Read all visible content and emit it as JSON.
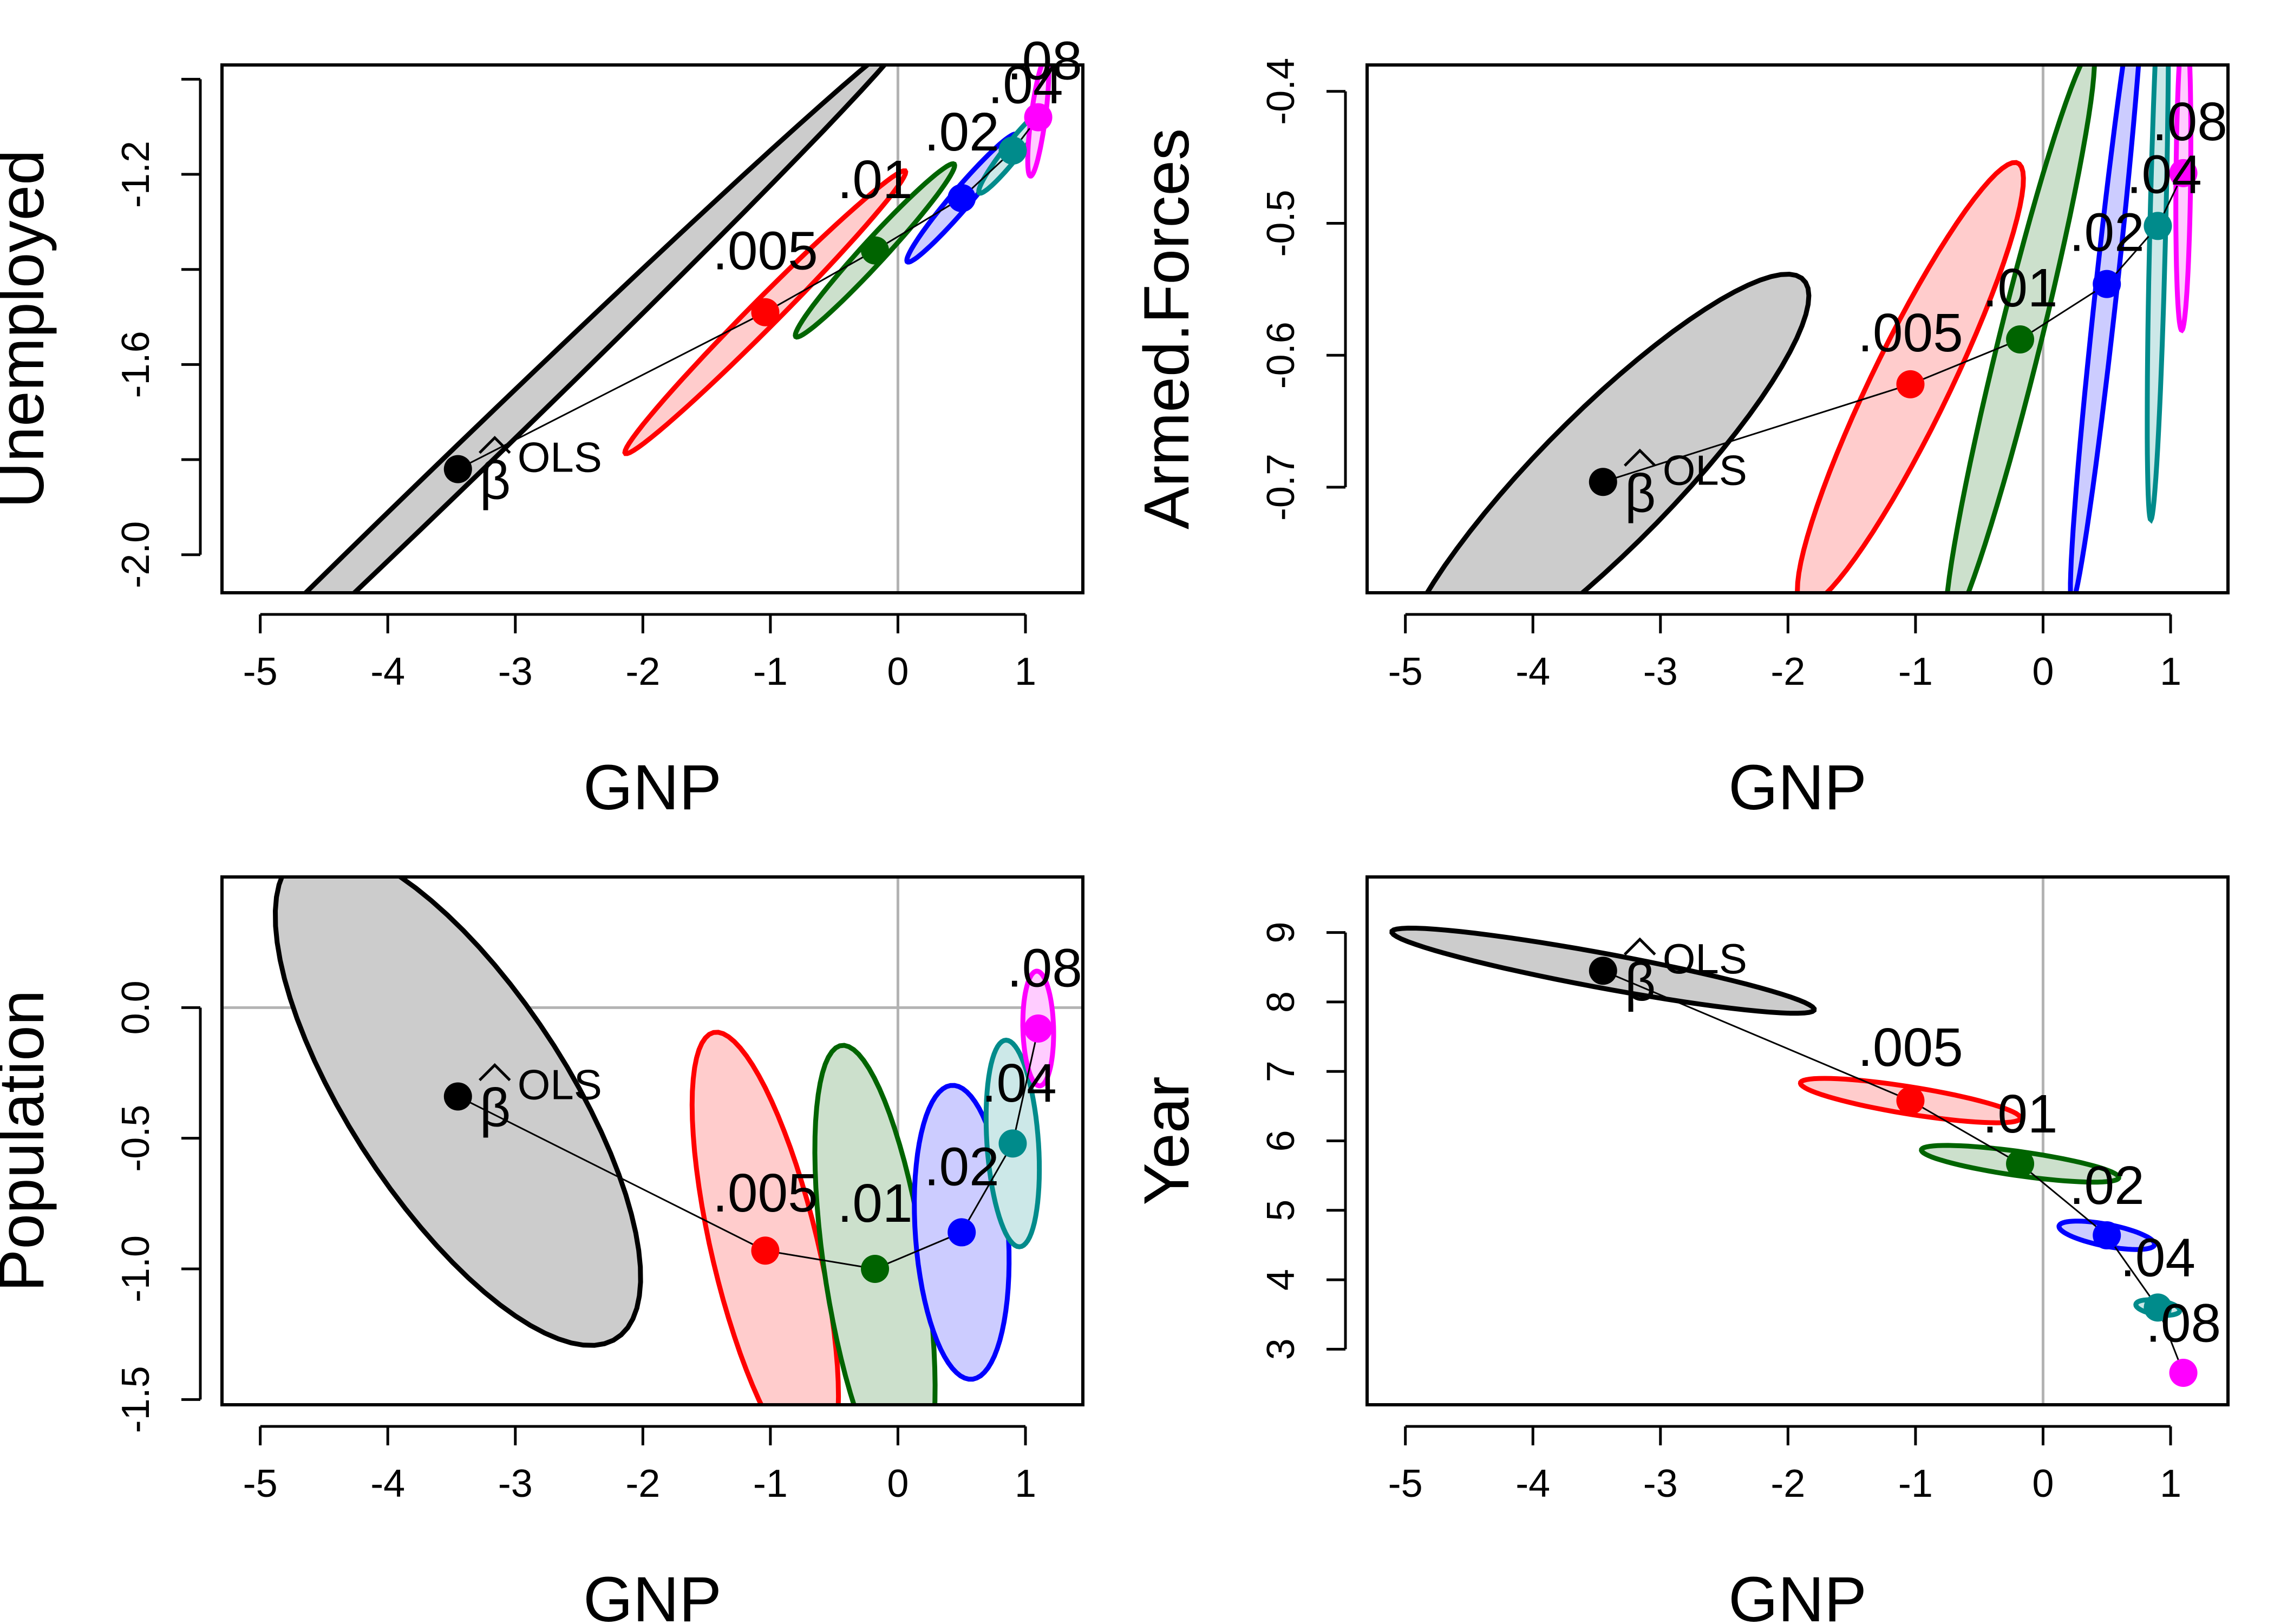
{
  "chart_data": [
    {
      "type": "scatter",
      "xlabel": "GNP",
      "ylabel": "Unemployed",
      "xlim": [
        -5.3,
        1.45
      ],
      "ylim": [
        -2.08,
        -0.97
      ],
      "xticks": [
        -5,
        -4,
        -3,
        -2,
        -1,
        0,
        1
      ],
      "xtick_labels": [
        "-5",
        "-4",
        "-3",
        "-2",
        "-1",
        "0",
        "1"
      ],
      "yticks": [
        -2.0,
        -1.8,
        -1.6,
        -1.4,
        -1.2,
        -1.0
      ],
      "ytick_labels": [
        "-2.0",
        "",
        "-1.6",
        "",
        "-1.2",
        ""
      ],
      "ref_x": 0,
      "ref_y": null,
      "points": [
        {
          "label": "β̂^OLS",
          "x": -3.45,
          "y": -1.82,
          "color": "#000000",
          "fill": "#cccccc",
          "ellipse": {
            "rx": 3.6,
            "ry": 0.05,
            "angle_deg": 14.5
          },
          "label_dx": 0.2,
          "label_dy": -0.03
        },
        {
          "label": ".005",
          "x": -1.04,
          "y": -1.49,
          "color": "#ff0000",
          "fill": "#ffcccc",
          "ellipse": {
            "rx": 1.14,
            "ry": 0.04,
            "angle_deg": 15
          },
          "label_dx": 0.0,
          "label_dy": 0.09
        },
        {
          "label": ".01",
          "x": -0.18,
          "y": -1.36,
          "color": "#006400",
          "fill": "#cce0cc",
          "ellipse": {
            "rx": 0.65,
            "ry": 0.035,
            "angle_deg": 16
          },
          "label_dx": 0.0,
          "label_dy": 0.11
        },
        {
          "label": ".02",
          "x": 0.5,
          "y": -1.25,
          "color": "#0000ff",
          "fill": "#ccccff",
          "ellipse": {
            "rx": 0.45,
            "ry": 0.03,
            "angle_deg": 17
          },
          "label_dx": 0.0,
          "label_dy": 0.1
        },
        {
          "label": ".04",
          "x": 0.9,
          "y": -1.15,
          "color": "#008b8b",
          "fill": "#cce8e8",
          "ellipse": {
            "rx": 0.28,
            "ry": 0.025,
            "angle_deg": 18
          },
          "label_dx": 0.1,
          "label_dy": 0.1
        },
        {
          "label": ".08",
          "x": 1.1,
          "y": -1.08,
          "color": "#ff00ff",
          "fill": "#ffccff",
          "ellipse": {
            "rx": 0.14,
            "ry": 0.05,
            "angle_deg": 60
          },
          "label_dx": 0.05,
          "label_dy": 0.08
        }
      ]
    },
    {
      "type": "scatter",
      "xlabel": "GNP",
      "ylabel": "Armed.Forces",
      "xlim": [
        -5.3,
        1.45
      ],
      "ylim": [
        -0.78,
        -0.38
      ],
      "xticks": [
        -5,
        -4,
        -3,
        -2,
        -1,
        0,
        1
      ],
      "xtick_labels": [
        "-5",
        "-4",
        "-3",
        "-2",
        "-1",
        "0",
        "1"
      ],
      "yticks": [
        -0.7,
        -0.6,
        -0.5,
        -0.4
      ],
      "ytick_labels": [
        "-0.7",
        "-0.6",
        "-0.5",
        "-0.4"
      ],
      "ref_x": 0,
      "ref_y": null,
      "points": [
        {
          "label": "β̂^OLS",
          "x": -3.45,
          "y": -0.696,
          "color": "#000000",
          "fill": "#cccccc",
          "ellipse": {
            "rx": 1.62,
            "ry": 0.07,
            "angle_deg": 5
          },
          "label_dx": 0.2,
          "label_dy": 0.01
        },
        {
          "label": ".005",
          "x": -1.04,
          "y": -0.622,
          "color": "#ff0000",
          "fill": "#ffcccc",
          "ellipse": {
            "rx": 0.9,
            "ry": 0.063,
            "angle_deg": 10
          },
          "label_dx": 0.0,
          "label_dy": 0.025
        },
        {
          "label": ".01",
          "x": -0.18,
          "y": -0.588,
          "color": "#006400",
          "fill": "#cce0cc",
          "ellipse": {
            "rx": 0.62,
            "ry": 0.06,
            "angle_deg": 20
          },
          "label_dx": 0.0,
          "label_dy": 0.025
        },
        {
          "label": ".02",
          "x": 0.5,
          "y": -0.546,
          "color": "#0000ff",
          "fill": "#ccccff",
          "ellipse": {
            "rx": 0.37,
            "ry": 0.055,
            "angle_deg": 40
          },
          "label_dx": 0.0,
          "label_dy": 0.025
        },
        {
          "label": ".04",
          "x": 0.9,
          "y": -0.502,
          "color": "#008b8b",
          "fill": "#cce8e8",
          "ellipse": {
            "rx": 0.23,
            "ry": 0.06,
            "angle_deg": 75
          },
          "label_dx": 0.05,
          "label_dy": 0.025
        },
        {
          "label": ".08",
          "x": 1.1,
          "y": -0.462,
          "color": "#ff00ff",
          "fill": "#ffccff",
          "ellipse": {
            "rx": 0.12,
            "ry": 0.057,
            "angle_deg": 82
          },
          "label_dx": 0.05,
          "label_dy": 0.025
        }
      ]
    },
    {
      "type": "scatter",
      "xlabel": "GNP",
      "ylabel": "Population",
      "xlim": [
        -5.3,
        1.45
      ],
      "ylim": [
        -1.52,
        0.5
      ],
      "xticks": [
        -5,
        -4,
        -3,
        -2,
        -1,
        0,
        1
      ],
      "xtick_labels": [
        "-5",
        "-4",
        "-3",
        "-2",
        "-1",
        "0",
        "1"
      ],
      "yticks": [
        -1.5,
        -1.0,
        -0.5,
        0.0
      ],
      "ytick_labels": [
        "-1.5",
        "-1.0",
        "-0.5",
        "0.0"
      ],
      "ref_x": 0,
      "ref_y": 0,
      "points": [
        {
          "label": "β̂^OLS",
          "x": -3.45,
          "y": -0.34,
          "color": "#000000",
          "fill": "#cccccc",
          "ellipse": {
            "rx": 1.62,
            "ry": 0.58,
            "angle_deg": -30
          },
          "label_dx": 0.2,
          "label_dy": 0.05
        },
        {
          "label": ".005",
          "x": -1.04,
          "y": -0.93,
          "color": "#ff0000",
          "fill": "#ffcccc",
          "ellipse": {
            "rx": 0.94,
            "ry": 0.38,
            "angle_deg": -60
          },
          "label_dx": 0.0,
          "label_dy": 0.15
        },
        {
          "label": ".01",
          "x": -0.18,
          "y": -1.0,
          "color": "#006400",
          "fill": "#cce0cc",
          "ellipse": {
            "rx": 0.9,
            "ry": 0.38,
            "angle_deg": -70
          },
          "label_dx": 0.0,
          "label_dy": 0.18
        },
        {
          "label": ".02",
          "x": 0.5,
          "y": -0.86,
          "color": "#0000ff",
          "fill": "#ccccff",
          "ellipse": {
            "rx": 0.57,
            "ry": 0.36,
            "angle_deg": -78
          },
          "label_dx": 0.0,
          "label_dy": 0.18
        },
        {
          "label": ".04",
          "x": 0.9,
          "y": -0.52,
          "color": "#008b8b",
          "fill": "#cce8e8",
          "ellipse": {
            "rx": 0.4,
            "ry": 0.2,
            "angle_deg": -80
          },
          "label_dx": 0.05,
          "label_dy": 0.16
        },
        {
          "label": ".08",
          "x": 1.1,
          "y": -0.08,
          "color": "#ff00ff",
          "fill": "#ffccff",
          "ellipse": {
            "rx": 0.22,
            "ry": 0.12,
            "angle_deg": -86
          },
          "label_dx": 0.05,
          "label_dy": 0.16
        }
      ]
    },
    {
      "type": "scatter",
      "xlabel": "GNP",
      "ylabel": "Year",
      "xlim": [
        -5.3,
        1.45
      ],
      "ylim": [
        2.2,
        9.8
      ],
      "xticks": [
        -5,
        -4,
        -3,
        -2,
        -1,
        0,
        1
      ],
      "xtick_labels": [
        "-5",
        "-4",
        "-3",
        "-2",
        "-1",
        "0",
        "1"
      ],
      "yticks": [
        3,
        4,
        5,
        6,
        7,
        8,
        9
      ],
      "ytick_labels": [
        "3",
        "4",
        "5",
        "6",
        "7",
        "8",
        "9"
      ],
      "ref_x": 0,
      "ref_y": null,
      "points": [
        {
          "label": "β̂^OLS",
          "x": -3.45,
          "y": 8.45,
          "color": "#000000",
          "fill": "#cccccc",
          "ellipse": {
            "rx": 1.75,
            "ry": 0.24,
            "angle_deg": -19
          },
          "label_dx": 0.2,
          "label_dy": 0.1
        },
        {
          "label": ".005",
          "x": -1.04,
          "y": 6.58,
          "color": "#ff0000",
          "fill": "#ffcccc",
          "ellipse": {
            "rx": 0.9,
            "ry": 0.19,
            "angle_deg": -17
          },
          "label_dx": 0.0,
          "label_dy": 0.5
        },
        {
          "label": ".01",
          "x": -0.18,
          "y": 5.67,
          "color": "#006400",
          "fill": "#cce0cc",
          "ellipse": {
            "rx": 0.8,
            "ry": 0.17,
            "angle_deg": -15
          },
          "label_dx": 0.0,
          "label_dy": 0.45
        },
        {
          "label": ".02",
          "x": 0.5,
          "y": 4.64,
          "color": "#0000ff",
          "fill": "#ccccff",
          "ellipse": {
            "rx": 0.4,
            "ry": 0.15,
            "angle_deg": -22
          },
          "label_dx": 0.0,
          "label_dy": 0.45
        },
        {
          "label": ".04",
          "x": 0.9,
          "y": 3.6,
          "color": "#008b8b",
          "fill": "#cce8e8",
          "ellipse": {
            "rx": 0.18,
            "ry": 0.1,
            "angle_deg": -20
          },
          "label_dx": 0.0,
          "label_dy": 0.45
        },
        {
          "label": ".08",
          "x": 1.1,
          "y": 2.66,
          "color": "#ff00ff",
          "fill": "#ffccff",
          "ellipse": null,
          "label_dx": 0.0,
          "label_dy": 0.45
        }
      ]
    }
  ]
}
